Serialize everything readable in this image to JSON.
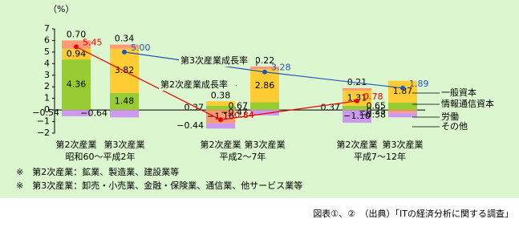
{
  "chart_data": {
    "type": "bar",
    "stacked": true,
    "y_label": "（%）",
    "ylim": [
      -2,
      7
    ],
    "yticks": [
      {
        "value": -2,
        "label": "−2"
      },
      {
        "value": -1,
        "label": "−1"
      },
      0,
      1,
      2,
      3,
      4,
      5,
      6,
      7
    ],
    "categories": [
      "第2次産業",
      "第3次産業",
      "第2次産業",
      "第3次産業",
      "第2次産業",
      "第3次産業"
    ],
    "groups": [
      "昭和60～平成2年",
      "平成2～7年",
      "平成7～12年"
    ],
    "series": [
      {
        "name": "情報通信資本",
        "color": "#99cc33",
        "values": [
          4.36,
          1.48,
          0.37,
          0.67,
          0.37,
          0.65
        ],
        "value_labels": [
          "4.36",
          "1.48",
          "0.37",
          "0.67",
          "0.37",
          "0.65"
        ]
      },
      {
        "name": "一般資本",
        "color": "#ffcc33",
        "values": [
          0.94,
          3.82,
          0.38,
          2.86,
          1.31,
          1.87
        ],
        "value_labels": [
          "0.94",
          "3.82",
          "0.38",
          "2.86",
          "1.31",
          "1.87"
        ]
      },
      {
        "name": "労働",
        "color": "#ff9977",
        "values": [
          0.7,
          0.34,
          -1.16,
          0.22,
          0.21,
          -0.25
        ],
        "value_labels": [
          "0.70",
          "0.34",
          "−1.16",
          "0.22",
          "0.21",
          "−0.25"
        ]
      },
      {
        "name": "その他",
        "color": "#cc99ee",
        "values": [
          -0.54,
          -0.64,
          -0.44,
          -0.47,
          -1.1,
          -0.38
        ],
        "value_labels": [
          "−0.54",
          "−0.64",
          "−0.44",
          "−0.47",
          "−1.10",
          "−0.38"
        ]
      }
    ],
    "lines": [
      {
        "name": "第2次産業成長率",
        "color": "#ee0000",
        "values": [
          5.45,
          -0.84,
          0.78
        ],
        "value_labels": [
          "5.45",
          "−0.84",
          "0.78"
        ]
      },
      {
        "name": "第3次産業成長率",
        "color": "#2255bb",
        "values": [
          5.0,
          3.28,
          1.89
        ],
        "value_labels": [
          "5.00",
          "3.28",
          "1.89"
        ]
      }
    ],
    "notes": [
      "※　第2次産業：鉱業、製造業、建設業等",
      "※　第3次産業：卸売・小売業、金融・保険業、通信業、他サービス業等"
    ],
    "source": "図表①、②　（出典）「ITの経済分析に関する調査」"
  }
}
